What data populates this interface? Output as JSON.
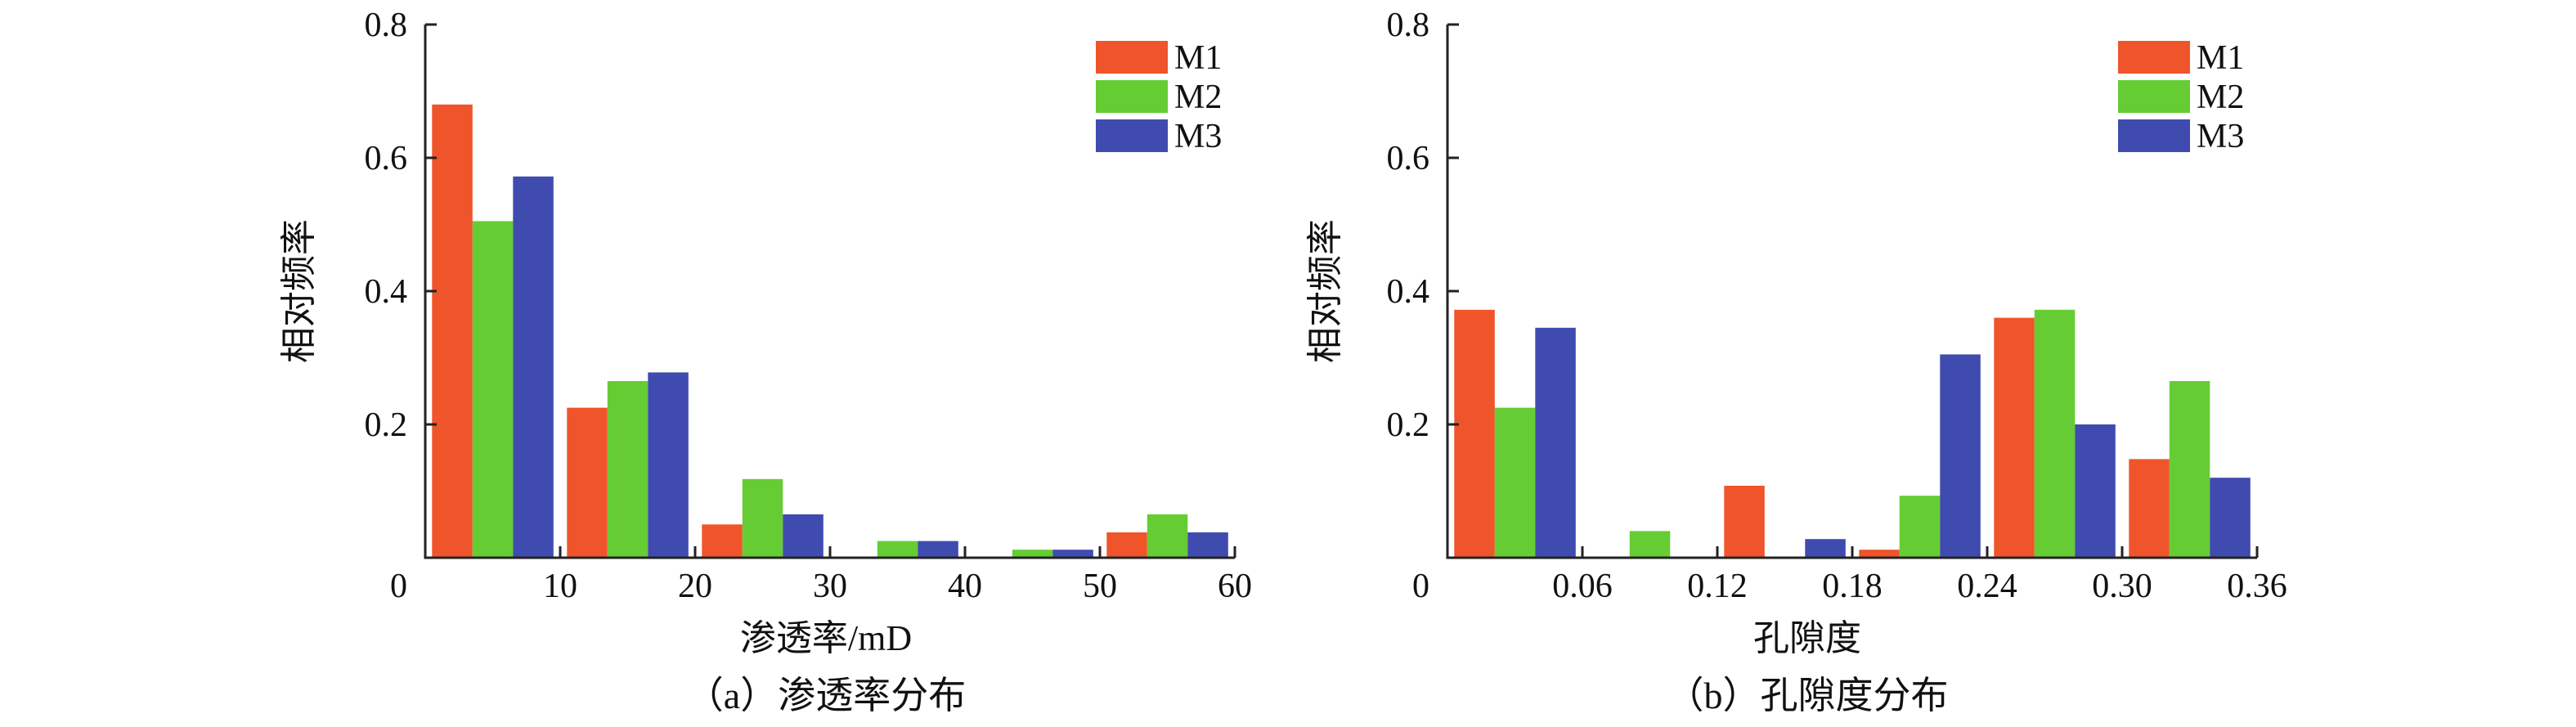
{
  "colors": {
    "M1": "#F0542A",
    "M2": "#66CC33",
    "M3": "#3F4BAF"
  },
  "chart_data": [
    {
      "type": "bar",
      "title": "",
      "caption": "（a）渗透率分布",
      "xlabel": "渗透率/mD",
      "ylabel": "相对频率",
      "bin_centers": [
        5,
        15,
        25,
        35,
        45,
        55
      ],
      "bin_width": 10,
      "xlim": [
        0,
        60
      ],
      "ylim": [
        0,
        0.8
      ],
      "xticks": [
        0,
        10,
        20,
        30,
        40,
        50,
        60
      ],
      "xtick_labels": [
        "0",
        "10",
        "20",
        "30",
        "40",
        "50",
        "60"
      ],
      "yticks": [
        0.2,
        0.4,
        0.6,
        0.8
      ],
      "ytick_labels": [
        "0.2",
        "0.4",
        "0.6",
        "0.8"
      ],
      "legend_position": "top-right",
      "series": [
        {
          "name": "M1",
          "values": [
            0.68,
            0.225,
            0.05,
            0.0,
            0.0,
            0.038
          ]
        },
        {
          "name": "M2",
          "values": [
            0.505,
            0.265,
            0.118,
            0.025,
            0.012,
            0.065
          ]
        },
        {
          "name": "M3",
          "values": [
            0.572,
            0.278,
            0.065,
            0.025,
            0.012,
            0.038
          ]
        }
      ]
    },
    {
      "type": "bar",
      "title": "",
      "caption": "（b）孔隙度分布",
      "xlabel": "孔隙度",
      "ylabel": "相对频率",
      "bin_centers": [
        0.03,
        0.09,
        0.15,
        0.21,
        0.27,
        0.33
      ],
      "bin_width": 0.06,
      "xlim": [
        0,
        0.36
      ],
      "ylim": [
        0,
        0.8
      ],
      "xticks": [
        0.06,
        0.12,
        0.18,
        0.24,
        0.3,
        0.36
      ],
      "xtick_labels": [
        "0.06",
        "0.12",
        "0.18",
        "0.24",
        "0.30",
        "0.36"
      ],
      "origin_label": "0",
      "yticks": [
        0.2,
        0.4,
        0.6,
        0.8
      ],
      "ytick_labels": [
        "0.2",
        "0.4",
        "0.6",
        "0.8"
      ],
      "legend_position": "top-right",
      "series": [
        {
          "name": "M1",
          "values": [
            0.372,
            0.0,
            0.108,
            0.012,
            0.36,
            0.148
          ]
        },
        {
          "name": "M2",
          "values": [
            0.225,
            0.04,
            0.0,
            0.093,
            0.372,
            0.265
          ]
        },
        {
          "name": "M3",
          "values": [
            0.345,
            0.0,
            0.028,
            0.305,
            0.2,
            0.12
          ]
        }
      ]
    }
  ]
}
